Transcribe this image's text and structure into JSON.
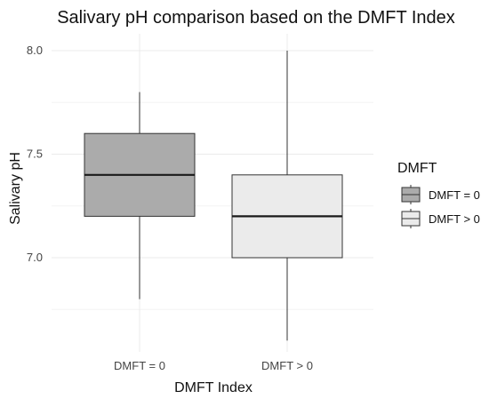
{
  "chart_data": {
    "type": "boxplot",
    "title": "Salivary pH comparison based on the DMFT Index",
    "xlabel": "DMFT Index",
    "ylabel": "Salivary pH",
    "ylim": [
      6.6,
      8.05
    ],
    "y_ticks": [
      "7.0",
      "7.5",
      "8.0"
    ],
    "y_tick_values": [
      7.0,
      7.5,
      8.0
    ],
    "y_minor_ticks": [
      6.75,
      7.25,
      7.75
    ],
    "grid": true,
    "legend": {
      "title": "DMFT",
      "position": "right",
      "entries": [
        "DMFT = 0",
        "DMFT > 0"
      ]
    },
    "categories": [
      "DMFT = 0",
      "DMFT > 0"
    ],
    "boxes": [
      {
        "category": "DMFT = 0",
        "min": 6.8,
        "q1": 7.2,
        "median": 7.4,
        "q3": 7.6,
        "max": 7.8,
        "color": "#ababab"
      },
      {
        "category": "DMFT > 0",
        "min": 6.6,
        "q1": 7.0,
        "median": 7.2,
        "q3": 7.4,
        "max": 8.0,
        "color": "#ebebeb"
      }
    ]
  }
}
